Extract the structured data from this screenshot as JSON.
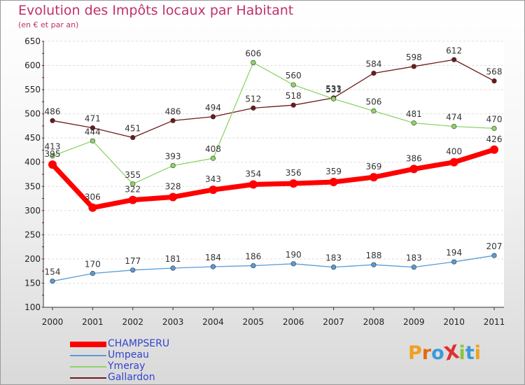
{
  "title": "Evolution des Impôts locaux par Habitant",
  "subtitle": "(en € et par an)",
  "logo": {
    "text": "ProXiti",
    "colors": [
      "#f0a020",
      "#e06a10",
      "#3a9ad9",
      "#e03030",
      "#8ac43a",
      "#3a9ad9",
      "#f0a020"
    ]
  },
  "chart_data": {
    "type": "line",
    "title": "Evolution des Impôts locaux par Habitant",
    "subtitle": "(en € et par an)",
    "x": [
      "2000",
      "2001",
      "2002",
      "2003",
      "2004",
      "2005",
      "2006",
      "2007",
      "2008",
      "2009",
      "2010",
      "2011"
    ],
    "ylim": [
      100,
      650
    ],
    "yticks": [
      100,
      150,
      200,
      250,
      300,
      350,
      400,
      450,
      500,
      550,
      600,
      650
    ],
    "grid": "horizontal",
    "legend_position": "bottom-left",
    "series": [
      {
        "name": "Gallardon",
        "color": "#6e1a1a",
        "values": [
          486,
          471,
          451,
          486,
          494,
          512,
          518,
          533,
          584,
          598,
          612,
          568
        ]
      },
      {
        "name": "Ymeray",
        "color": "#8fd46a",
        "values": [
          413,
          444,
          355,
          393,
          408,
          606,
          560,
          531,
          506,
          481,
          474,
          470
        ]
      },
      {
        "name": "Umpeau",
        "color": "#5b9bd5",
        "values": [
          154,
          170,
          177,
          181,
          184,
          186,
          190,
          183,
          188,
          183,
          194,
          207
        ]
      },
      {
        "name": "CHAMPSERU",
        "color": "#ff0000",
        "values": [
          395,
          306,
          322,
          328,
          343,
          354,
          356,
          359,
          369,
          386,
          400,
          426
        ]
      }
    ]
  },
  "legend": [
    {
      "name": "CHAMPSERU",
      "color": "#ff0000"
    },
    {
      "name": "Umpeau",
      "color": "#5b9bd5"
    },
    {
      "name": "Ymeray",
      "color": "#8fd46a"
    },
    {
      "name": "Gallardon",
      "color": "#6e1a1a"
    }
  ]
}
